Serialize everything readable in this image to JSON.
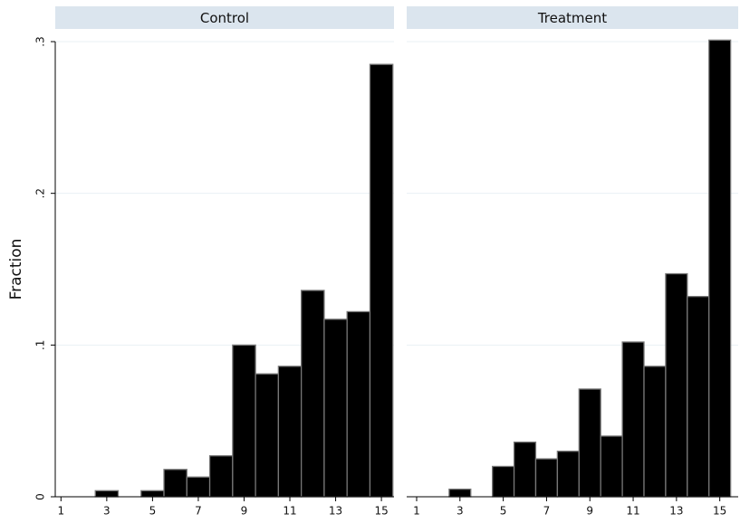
{
  "chart_data": [
    {
      "type": "histogram",
      "title": "Control",
      "ylabel": "Fraction",
      "bins": [
        0.5,
        1.5,
        2.5,
        3.5,
        4.5,
        5.5,
        6.5,
        7.5,
        8.5,
        9.5,
        10.5,
        11.5,
        12.5,
        13.5,
        14.5,
        15.5
      ],
      "values": [
        0,
        0,
        0.004,
        0,
        0.004,
        0.018,
        0.013,
        0.027,
        0.1,
        0.081,
        0.086,
        0.136,
        0.117,
        0.122,
        0.285
      ],
      "color": "#000000",
      "xlim": [
        0.75,
        15.55
      ],
      "xticks": [
        1,
        3,
        5,
        7,
        9,
        11,
        13,
        15
      ],
      "ylim": [
        0,
        0.3
      ],
      "yticks": [
        {
          "value": 0,
          "label": "0"
        },
        {
          "value": 0.1,
          "label": ".1"
        },
        {
          "value": 0.2,
          "label": ".2"
        },
        {
          "value": 0.3,
          "label": ".3"
        }
      ],
      "grid": true
    },
    {
      "type": "histogram",
      "title": "Treatment",
      "bins": [
        0.5,
        1.5,
        2.5,
        3.5,
        4.5,
        5.5,
        6.5,
        7.5,
        8.5,
        9.5,
        10.5,
        11.5,
        12.5,
        13.5,
        14.5,
        15.5
      ],
      "values": [
        0,
        0,
        0.005,
        0,
        0.02,
        0.036,
        0.025,
        0.03,
        0.071,
        0.04,
        0.102,
        0.086,
        0.147,
        0.132,
        0.301
      ],
      "color": "#000000",
      "xlim": [
        0.54,
        15.85
      ],
      "xticks": [
        1,
        3,
        5,
        7,
        9,
        11,
        13,
        15
      ],
      "ylim": [
        0,
        0.3
      ],
      "yticks": [
        0,
        0.1,
        0.2,
        0.3
      ],
      "grid": true
    }
  ]
}
